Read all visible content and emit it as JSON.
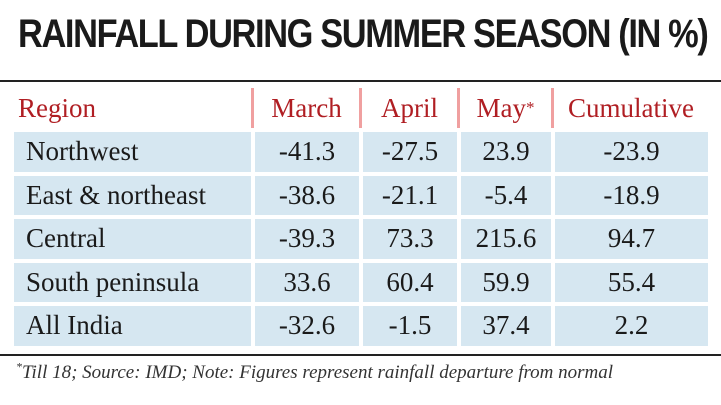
{
  "chart_data": {
    "type": "table",
    "title": "RAINFALL DURING SUMMER SEASON (IN %)",
    "columns": [
      "Region",
      "March",
      "April",
      "May",
      "Cumulative"
    ],
    "column_footnote_marks": {
      "May": "*"
    },
    "rows": [
      {
        "region": "Northwest",
        "march": "-41.3",
        "april": "-27.5",
        "may": "23.9",
        "cumulative": "-23.9"
      },
      {
        "region": "East & northeast",
        "march": "-38.6",
        "april": "-21.1",
        "may": "-5.4",
        "cumulative": "-18.9"
      },
      {
        "region": "Central",
        "march": "-39.3",
        "april": "73.3",
        "may": "215.6",
        "cumulative": "94.7"
      },
      {
        "region": "South peninsula",
        "march": "33.6",
        "april": "60.4",
        "may": "59.9",
        "cumulative": "55.4"
      },
      {
        "region": "All India",
        "march": "-32.6",
        "april": "-1.5",
        "may": "37.4",
        "cumulative": "2.2"
      }
    ],
    "footnote_mark": "*",
    "footnote": "Till 18; Source: IMD; Note: Figures represent rainfall departure from normal"
  },
  "colors": {
    "header_text": "#b01e23",
    "row_background": "#d6e7f1",
    "header_divider": "#f0a0a0"
  }
}
